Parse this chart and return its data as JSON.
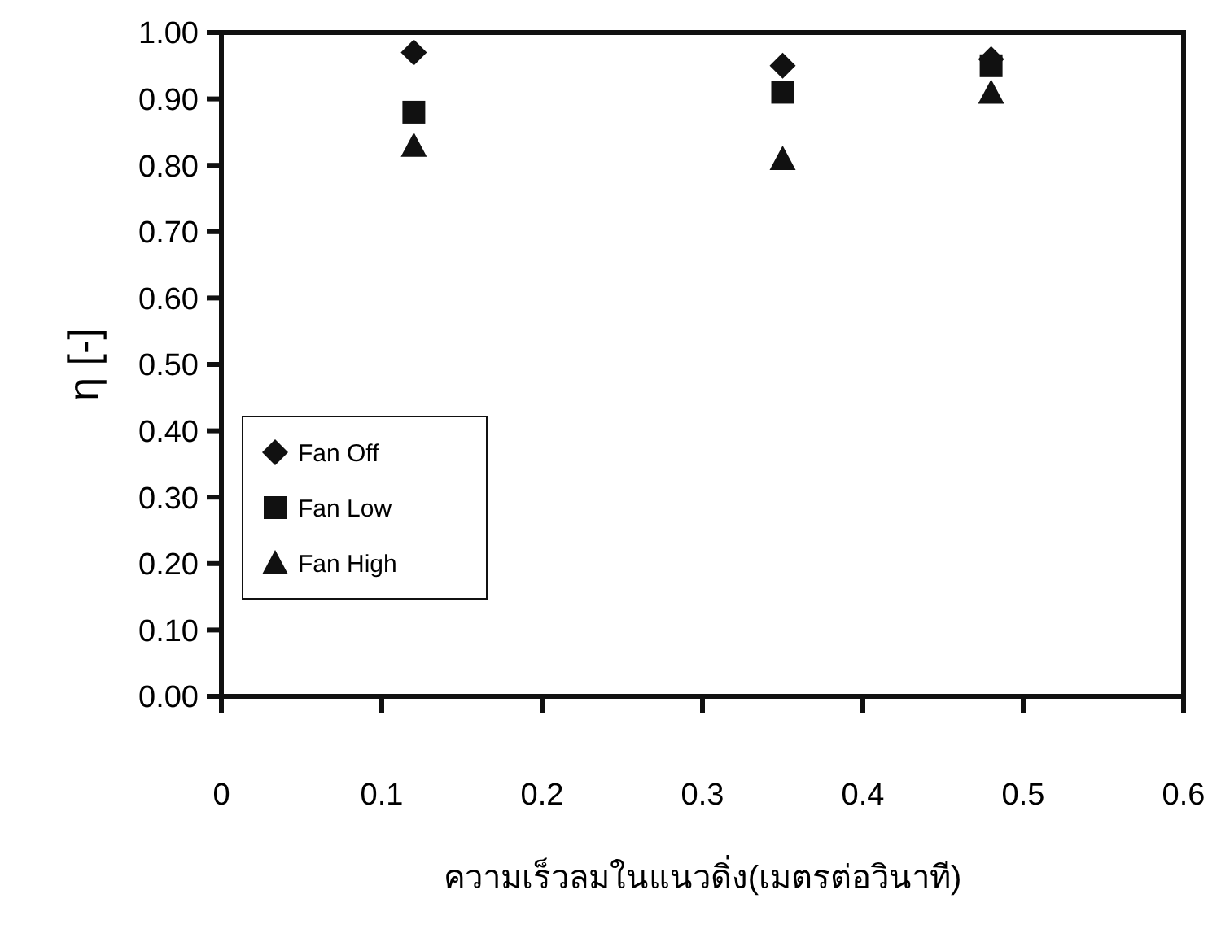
{
  "chart_data": {
    "type": "scatter",
    "xlabel": "ความเร็วลมในแนวดิ่ง(เมตรต่อวินาที)",
    "ylabel": "η [-]",
    "x": [
      0.12,
      0.35,
      0.48
    ],
    "series": [
      {
        "name": "Fan Off",
        "color": "#111111",
        "marker": "diamond",
        "values": [
          0.97,
          0.95,
          0.96
        ]
      },
      {
        "name": "Fan Low",
        "color": "#111111",
        "marker": "square",
        "values": [
          0.88,
          0.91,
          0.95
        ]
      },
      {
        "name": "Fan High",
        "color": "#111111",
        "marker": "triangle",
        "values": [
          0.83,
          0.81,
          0.91
        ]
      }
    ],
    "xlim": [
      0,
      0.6
    ],
    "xticks": [
      0,
      0.1,
      0.2,
      0.3,
      0.4,
      0.5,
      0.6
    ],
    "ylim": [
      0,
      1
    ],
    "yticks": [
      {
        "value": 0,
        "label": "0.00"
      },
      {
        "value": 0.1,
        "label": "0.10"
      },
      {
        "value": 0.2,
        "label": "0.20"
      },
      {
        "value": 0.3,
        "label": "0.30"
      },
      {
        "value": 0.4,
        "label": "0.40"
      },
      {
        "value": 0.5,
        "label": "0.50"
      },
      {
        "value": 0.6,
        "label": "0.60"
      },
      {
        "value": 0.7,
        "label": "0.70"
      },
      {
        "value": 0.8,
        "label": "0.80"
      },
      {
        "value": 0.9,
        "label": "0.90"
      },
      {
        "value": 1,
        "label": "1.00"
      }
    ],
    "grid": false,
    "legend": "bottom left"
  }
}
